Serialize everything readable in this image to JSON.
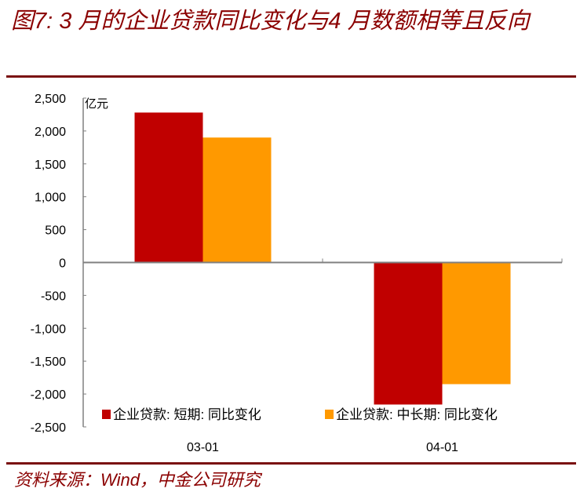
{
  "title": "图7: 3 月的企业贷款同比变化与4 月数额相等且反向",
  "source": "资料来源：Wind，中金公司研究",
  "chart_data": {
    "type": "bar",
    "title": "图7: 3 月的企业贷款同比变化与4 月数额相等且反向",
    "ylabel": "亿元",
    "xlabel": "",
    "categories": [
      "03-01",
      "04-01"
    ],
    "series": [
      {
        "name": "企业贷款: 短期: 同比变化",
        "color": "#c00000",
        "values": [
          2280,
          -2160
        ]
      },
      {
        "name": "企业贷款: 中长期: 同比变化",
        "color": "#ff9900",
        "values": [
          1900,
          -1850
        ]
      }
    ],
    "ylim": [
      -2500,
      2500
    ],
    "yticks": [
      2500,
      2000,
      1500,
      1000,
      500,
      0,
      -500,
      -1000,
      -1500,
      -2000,
      -2500
    ],
    "ytick_labels": [
      "2,500",
      "2,000",
      "1,500",
      "1,000",
      "500",
      "0",
      "-500",
      "-1,000",
      "-1,500",
      "-2,000",
      "-2,500"
    ],
    "grid": false,
    "legend": "bottom"
  }
}
